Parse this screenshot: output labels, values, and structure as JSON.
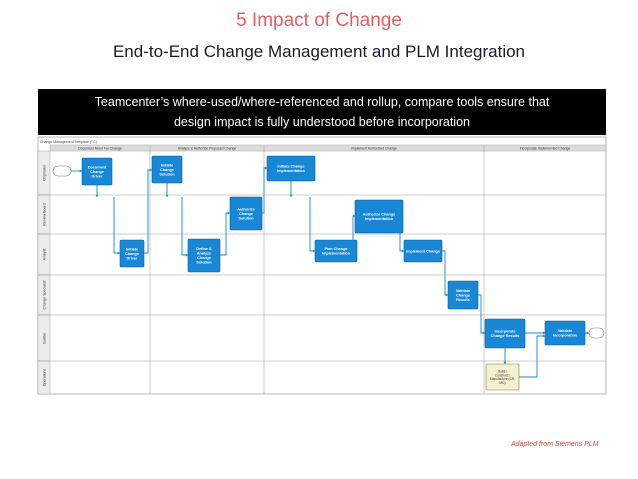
{
  "title": "5 Impact of Change",
  "subtitle": "End-to-End Change Management and PLM Integration",
  "banner": {
    "line1": "Teamcenter’s where-used/where-referenced and rollup, compare tools ensure that",
    "line2": "design impact is fully understood before incorporation"
  },
  "credit": "Adapted from Siemens PLM",
  "diagram": {
    "header_label": "Change Management Template (TC)",
    "phases": [
      "Document Need For Change",
      "Analyze & Authorize Proposed Change",
      "Implement Authorized Change",
      "Incorporate Implemented Change"
    ],
    "lanes": [
      "Originator",
      "Review Board",
      "Analyst",
      "Change Specialist",
      "Builder",
      "Operations"
    ],
    "tasks": [
      {
        "id": "t1",
        "label": "Document Change Driver"
      },
      {
        "id": "t2",
        "label": "Initiate Change Driver"
      },
      {
        "id": "t3",
        "label": "Initiate Change Solution"
      },
      {
        "id": "t4",
        "label": "Define & Analyze Change Solution"
      },
      {
        "id": "t5",
        "label": "Authorize Change Solution"
      },
      {
        "id": "t6",
        "label": "Initiate Change Implementation"
      },
      {
        "id": "t7",
        "label": "Plan Change Implementation"
      },
      {
        "id": "t8",
        "label": "Authorize Change Implementation"
      },
      {
        "id": "t9",
        "label": "Implement Change"
      },
      {
        "id": "t10",
        "label": "Validate Change Results"
      },
      {
        "id": "t11",
        "label": "Incorporate Change Results"
      },
      {
        "id": "t12",
        "label": "Validate Incorporation"
      },
      {
        "id": "t13",
        "label": "Build / Construct / Manufacture (CR, MO)"
      }
    ]
  },
  "colors": {
    "accent": "#e06060",
    "task": "#1787d6",
    "connector": "#1787d6",
    "banner": "#000000",
    "op_task": "#f3f0cf"
  }
}
